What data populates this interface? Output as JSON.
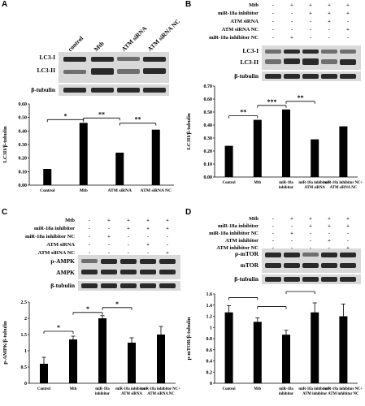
{
  "panels": {
    "A": {
      "label": "A",
      "lanes": [
        "control",
        "Mtb",
        "ATM siRNA",
        "ATM siRNA NC"
      ],
      "blot_labels": [
        "LC3-I",
        "LC3-II",
        "β-tubulin"
      ],
      "sig": [
        "*",
        "**",
        "**"
      ]
    },
    "B": {
      "label": "B",
      "rows": [
        {
          "name": "Mtb",
          "signs": [
            "-",
            "+",
            "+",
            "+",
            "+"
          ]
        },
        {
          "name": "miR-18a inhibitor",
          "signs": [
            "-",
            "-",
            "+",
            "+",
            "+"
          ]
        },
        {
          "name": "ATM siRNA",
          "signs": [
            "-",
            "-",
            "-",
            "+",
            "-"
          ]
        },
        {
          "name": "ATM siRNA NC",
          "signs": [
            "-",
            "-",
            "-",
            "-",
            "+"
          ]
        },
        {
          "name": "miR-18a inhibitor NC",
          "signs": [
            "-",
            "+",
            "-",
            "-",
            "-"
          ]
        }
      ],
      "blot_labels": [
        "LC3-I",
        "LC3-II",
        "β-tubulin"
      ],
      "sig": [
        "**",
        "***",
        "**"
      ]
    },
    "C": {
      "label": "C",
      "rows": [
        {
          "name": "Mtb",
          "signs": [
            "-",
            "+",
            "+",
            "+",
            "+"
          ]
        },
        {
          "name": "miR-18a inhibitor",
          "signs": [
            "-",
            "-",
            "+",
            "+",
            "+"
          ]
        },
        {
          "name": "miR-18a inhibitor NC",
          "signs": [
            "-",
            "+",
            "-",
            "-",
            "-"
          ]
        },
        {
          "name": "ATM siRNA",
          "signs": [
            "-",
            "-",
            "-",
            "+",
            "-"
          ]
        },
        {
          "name": "ATM siRNA NC",
          "signs": [
            "-",
            "-",
            "-",
            "-",
            "+"
          ]
        }
      ],
      "blot_labels": [
        "p-AMPK",
        "AMPK",
        "β-tubulin"
      ],
      "sig": [
        "*",
        "*",
        "*"
      ]
    },
    "D": {
      "label": "D",
      "rows": [
        {
          "name": "Mtb",
          "signs": [
            "-",
            "+",
            "+",
            "+",
            "+"
          ]
        },
        {
          "name": "miR-18a inhibitor",
          "signs": [
            "-",
            "-",
            "+",
            "+",
            "+"
          ]
        },
        {
          "name": "miR-18a inhibitor NC",
          "signs": [
            "-",
            "+",
            "-",
            "-",
            "-"
          ]
        },
        {
          "name": "ATM inhibitor",
          "signs": [
            "-",
            "-",
            "-",
            "+",
            "-"
          ]
        },
        {
          "name": "ATM inhibitor NC",
          "signs": [
            "-",
            "-",
            "-",
            "-",
            "+"
          ]
        }
      ],
      "blot_labels": [
        "p-mTOR",
        "mTOR",
        "β-tubulin"
      ]
    }
  },
  "chart_data": [
    {
      "type": "bar",
      "panel": "A",
      "categories": [
        "Control",
        "Mtb",
        "ATM siRNA",
        "ATM siRNA NC"
      ],
      "values": [
        0.12,
        0.46,
        0.24,
        0.41
      ],
      "ylabel": "LC3II/β-tubulin",
      "ylim": [
        0,
        0.6
      ],
      "yticks": [
        "0.00",
        "0.10",
        "0.20",
        "0.30",
        "0.40",
        "0.50",
        "0.60"
      ]
    },
    {
      "type": "bar",
      "panel": "B",
      "categories": [
        "Control",
        "Mtb",
        "miR-18a inhibitor",
        "miR-18a inhibitor+ATM siRNA",
        "miR-18a inhibitor NC+ATM siRNA NC"
      ],
      "values": [
        0.24,
        0.44,
        0.52,
        0.29,
        0.39
      ],
      "ylabel": "LC3II/β-tubulin",
      "ylim": [
        0,
        0.7
      ],
      "yticks": [
        "0.00",
        "0.10",
        "0.20",
        "0.30",
        "0.40",
        "0.50",
        "0.60",
        "0.70"
      ]
    },
    {
      "type": "bar",
      "panel": "C",
      "categories": [
        "Control",
        "Mtb",
        "miR-18a inhibitor",
        "miR-18a inhibitor+ATM siRNA",
        "miR-18a inhibitor NC+ATM siRNA NC"
      ],
      "values": [
        0.6,
        1.35,
        2.0,
        1.25,
        1.5
      ],
      "errors": [
        0.2,
        0.1,
        0.08,
        0.15,
        0.25
      ],
      "ylabel": "p-AMPK/β-tubulin",
      "ylim": [
        0,
        2.5
      ],
      "yticks": [
        "0",
        "0.5",
        "1",
        "1.5",
        "2",
        "2.5"
      ]
    },
    {
      "type": "bar",
      "panel": "D",
      "categories": [
        "Control",
        "Mtb",
        "miR-18a inhibitor",
        "miR-18a inhibitor+ATM inhibitor",
        "miR-18a inhibitor NC+ATM inhibitor NC"
      ],
      "values": [
        1.27,
        1.1,
        0.87,
        1.27,
        1.2
      ],
      "errors": [
        0.12,
        0.07,
        0.08,
        0.17,
        0.22
      ],
      "ylabel": "p-mTOR/β-tubulin",
      "ylim": [
        0,
        1.6
      ],
      "yticks": [
        "0",
        "0.2",
        "0.4",
        "0.6",
        "0.8",
        "1",
        "1.2",
        "1.4",
        "1.6"
      ]
    }
  ]
}
